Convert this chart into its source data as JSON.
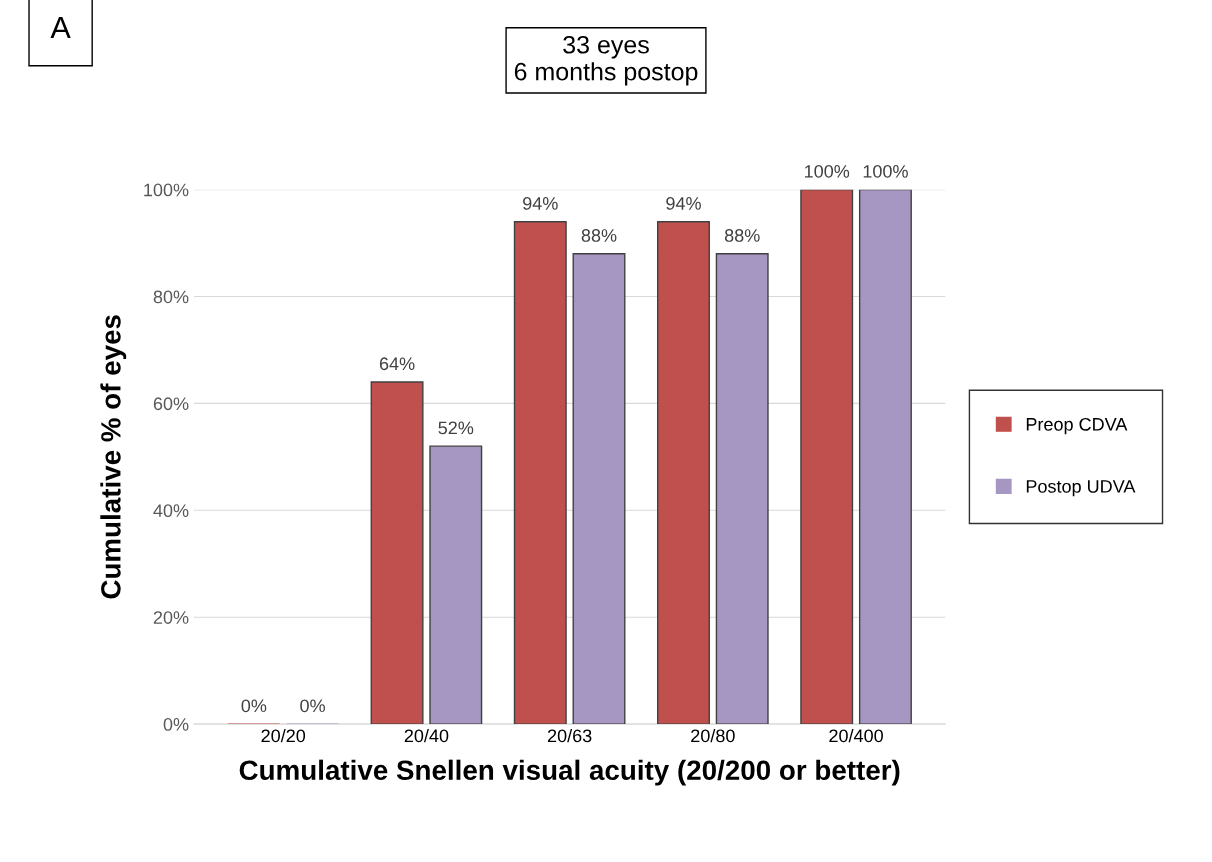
{
  "chart_data": {
    "type": "bar",
    "title": "33 eyes\n6 months postop",
    "annotations": [
      "A"
    ],
    "xlabel": "Cumulative Snellen visual acuity (20/200 or better)",
    "ylabel": "Cumulative % of eyes",
    "categories": [
      "20/20",
      "20/40",
      "20/63",
      "20/80",
      "20/400"
    ],
    "series": [
      {
        "name": "Preop CDVA",
        "color": "#c0504d",
        "values": [
          0,
          64,
          94,
          94,
          100
        ],
        "value_labels": [
          "0%",
          "64%",
          "94%",
          "94%",
          "100%"
        ]
      },
      {
        "name": "Postop UDVA",
        "color": "#a597c1",
        "values": [
          0,
          52,
          88,
          88,
          100
        ],
        "value_labels": [
          "0%",
          "52%",
          "88%",
          "88%",
          "100%"
        ]
      }
    ],
    "ylim": [
      0,
      100
    ],
    "yticks": [
      {
        "value": 0,
        "label": "0%"
      },
      {
        "value": 20,
        "label": "20%"
      },
      {
        "value": 40,
        "label": "40%"
      },
      {
        "value": 60,
        "label": "60%"
      },
      {
        "value": 80,
        "label": "80%"
      },
      {
        "value": 100,
        "label": "100%"
      }
    ],
    "grid": "y",
    "legend": "right"
  }
}
